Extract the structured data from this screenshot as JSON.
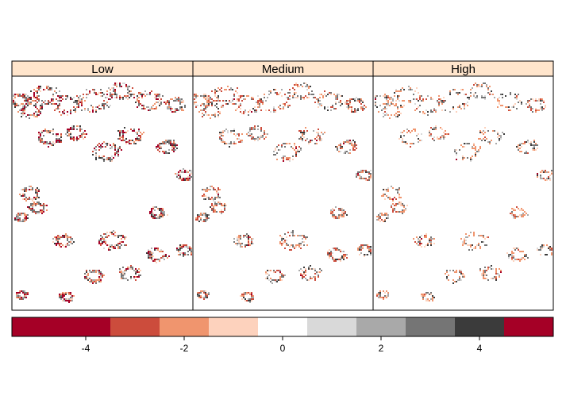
{
  "chart_data": {
    "type": "heatmap",
    "title": "",
    "xlabel": "",
    "ylabel": "",
    "panels": [
      {
        "name": "Low",
        "intensity": 1.0
      },
      {
        "name": "Medium",
        "intensity": 0.7
      },
      {
        "name": "High",
        "intensity": 0.5
      }
    ],
    "colorkey": {
      "breaks": [
        -5.5,
        -4.5,
        -3.5,
        -2.5,
        -1.5,
        -0.5,
        0.5,
        1.5,
        2.5,
        3.5,
        4.5,
        5.5
      ],
      "colors": [
        "#a50026",
        "#a50026",
        "#cc4c3c",
        "#f0956e",
        "#fdd2bd",
        "#ffffff",
        "#d9d9d9",
        "#a9a9a9",
        "#757575",
        "#3b3b3b",
        "#a50026"
      ],
      "ticks": [
        -4,
        -2,
        0,
        2,
        4
      ],
      "tick_labels": [
        "-4",
        "-2",
        "0",
        "2",
        "4"
      ],
      "range": [
        -5.5,
        5.5
      ],
      "placement": "bottom"
    },
    "strip_color": "#ffe5cc",
    "grid": false
  }
}
